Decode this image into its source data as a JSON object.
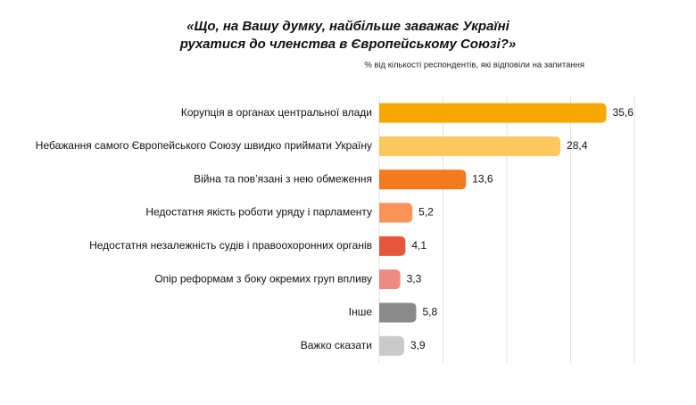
{
  "chart_data": {
    "type": "bar",
    "orientation": "horizontal",
    "title": [
      "«Що, на Вашу думку, найбільше заважає Україні",
      "рухатися до членства в Європейському Союзі?»"
    ],
    "subtitle": "% від кількості респондентів, які відповіли на запитання",
    "categories": [
      "Корупція в органах центральної влади",
      "Небажання самого Європейського Союзу швидко приймати Україну",
      "Війна та пов’язані з нею обмеження",
      "Недостатня якість роботи уряду і парламенту",
      "Недостатня незалежність судів і правоохоронних органів",
      "Опір реформам з боку окремих груп впливу",
      "Інше",
      "Важко сказати"
    ],
    "values": [
      35.6,
      28.4,
      13.6,
      5.2,
      4.1,
      3.3,
      5.8,
      3.9
    ],
    "value_labels": [
      "35,6",
      "28,4",
      "13,6",
      "5,2",
      "4,1",
      "3,3",
      "5,8",
      "3,9"
    ],
    "colors": [
      "#f7a800",
      "#fdc95e",
      "#f47a1f",
      "#f9935a",
      "#e4573b",
      "#ef8a80",
      "#8a8a8a",
      "#c9c9c9"
    ],
    "xlim": [
      0,
      40
    ],
    "xticks": [
      0,
      10,
      20,
      30,
      40
    ],
    "grid": true
  }
}
